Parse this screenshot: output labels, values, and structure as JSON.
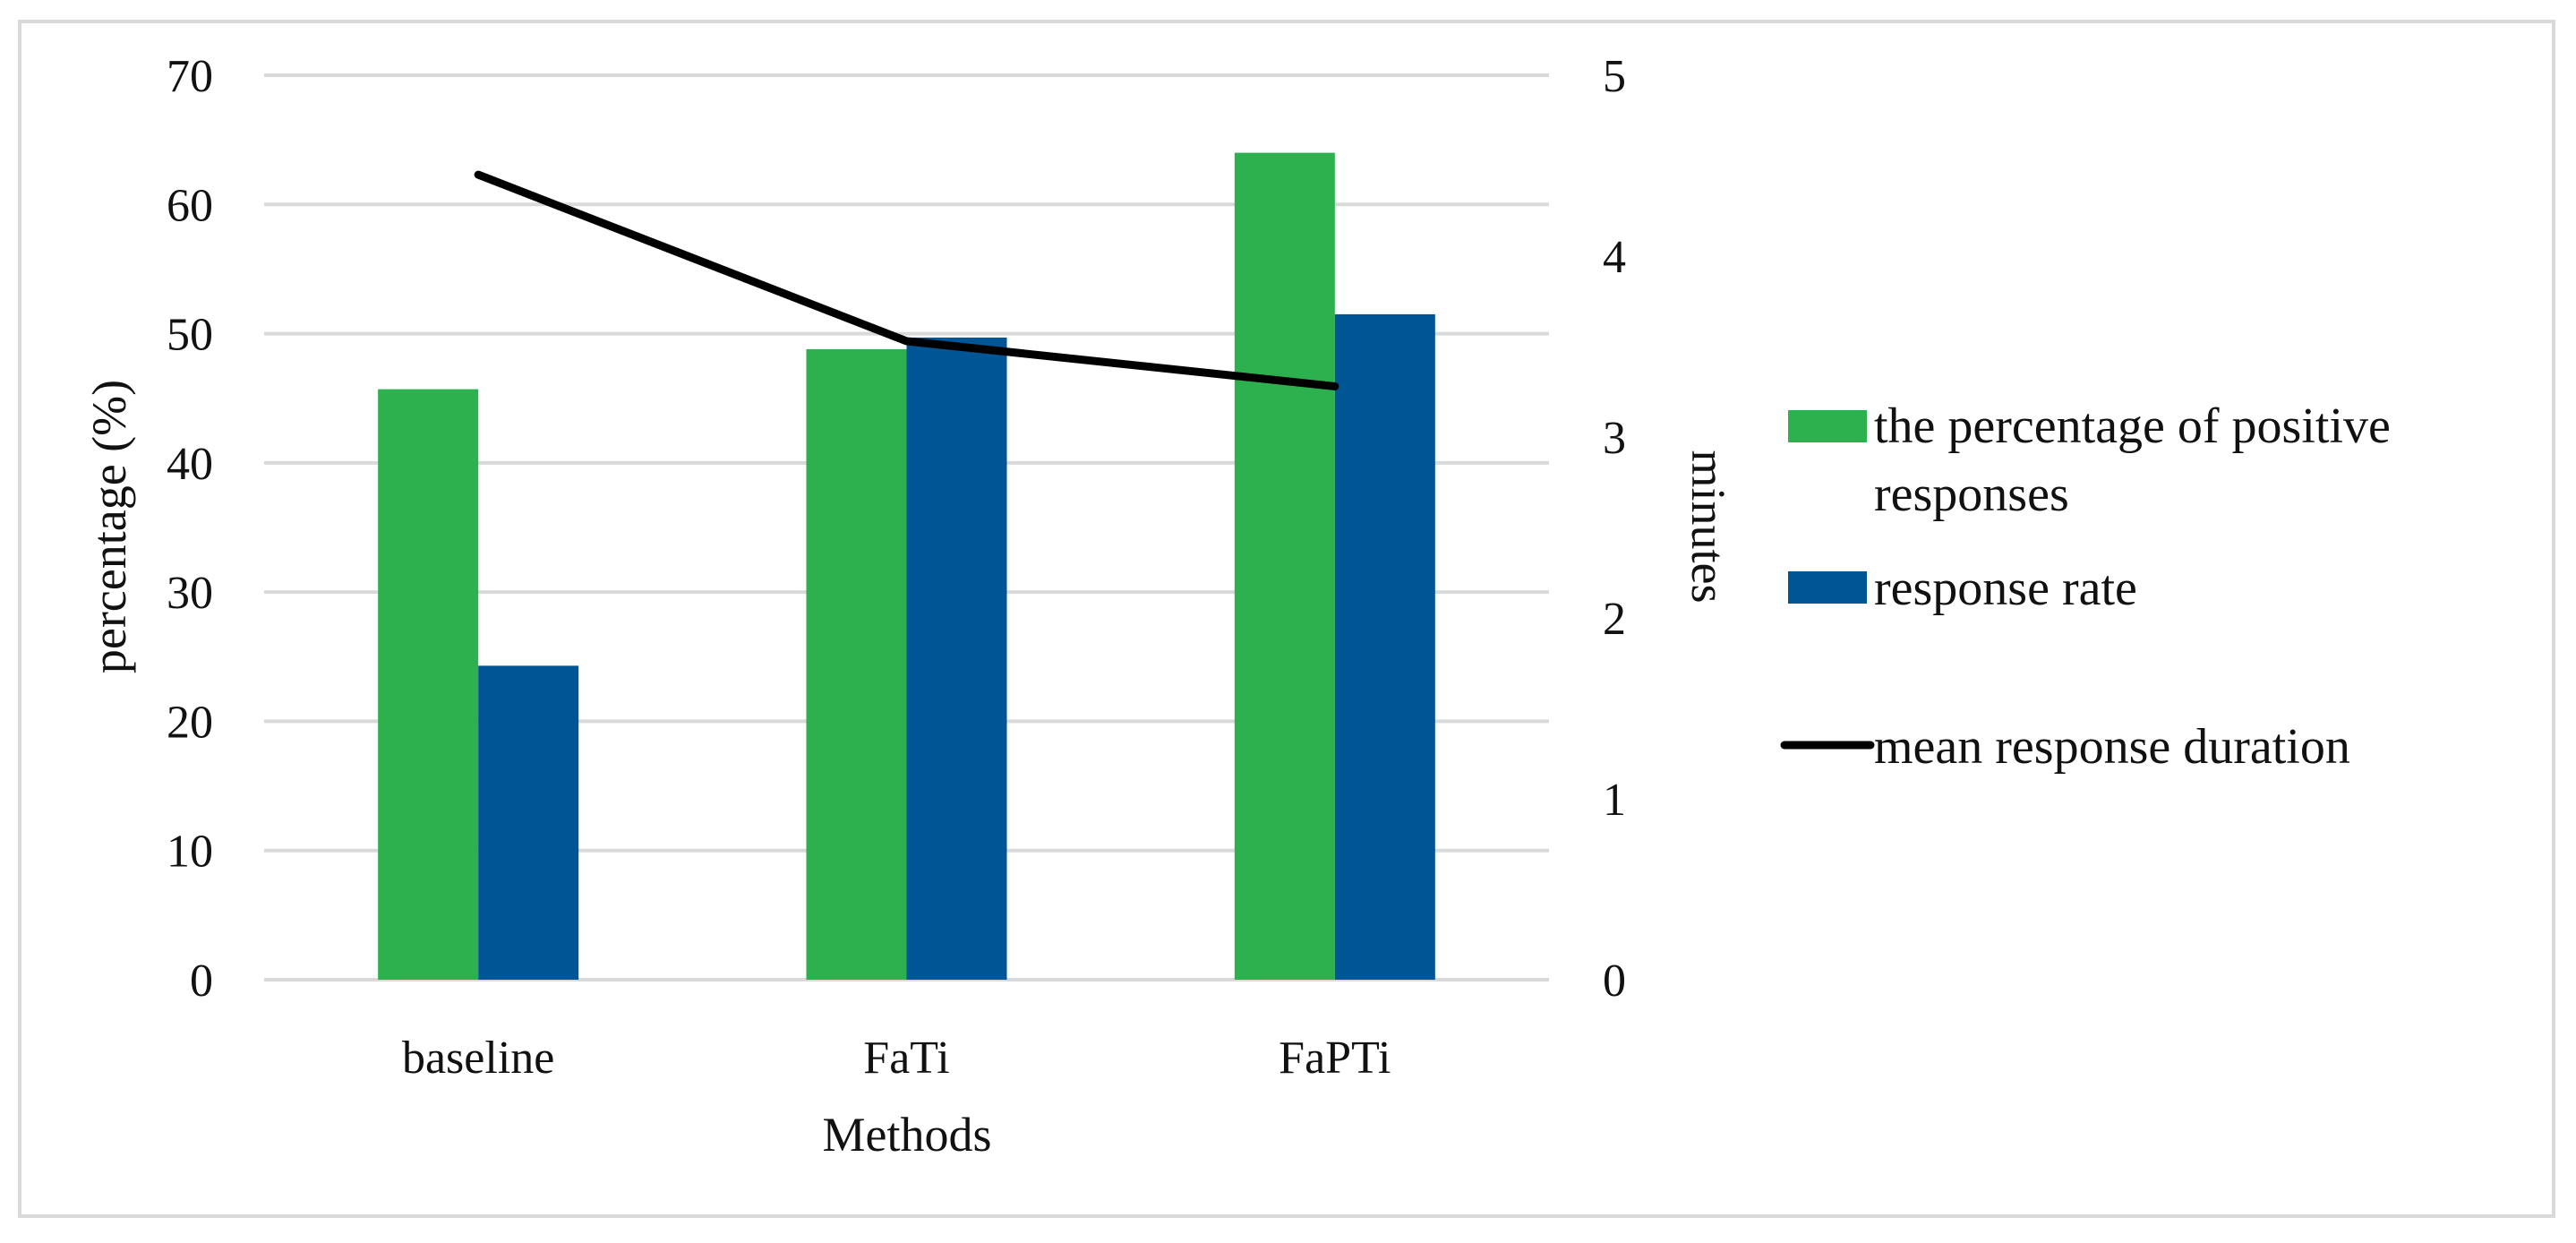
{
  "chart_data": {
    "type": "bar",
    "categories": [
      "baseline",
      "FaTi",
      "FaPTi"
    ],
    "series": [
      {
        "name": "the percentage of positive responses",
        "axis": "left",
        "kind": "bar",
        "color": "#2db04e",
        "values": [
          45.7,
          48.8,
          64.0
        ]
      },
      {
        "name": "response rate",
        "axis": "left",
        "kind": "bar",
        "color": "#005595",
        "values": [
          24.3,
          49.7,
          51.5
        ]
      },
      {
        "name": "mean response duration",
        "axis": "right",
        "kind": "line",
        "color": "#000000",
        "values": [
          4.45,
          3.53,
          3.28
        ]
      }
    ],
    "title": "",
    "xlabel": "Methods",
    "ylabel": "percentage (%)",
    "y2label": "minutes",
    "ylim": [
      0,
      70
    ],
    "y2lim": [
      0,
      5
    ],
    "yticks": [
      0,
      10,
      20,
      30,
      40,
      50,
      60,
      70
    ],
    "y2ticks": [
      0,
      1,
      2,
      3,
      4,
      5
    ],
    "legend_labels": [
      [
        "the percentage of positive",
        "responses"
      ],
      [
        "response rate"
      ],
      [
        "mean response duration"
      ]
    ],
    "grid": true,
    "legend_position": "right",
    "grid_color": "#d9d9d9"
  }
}
